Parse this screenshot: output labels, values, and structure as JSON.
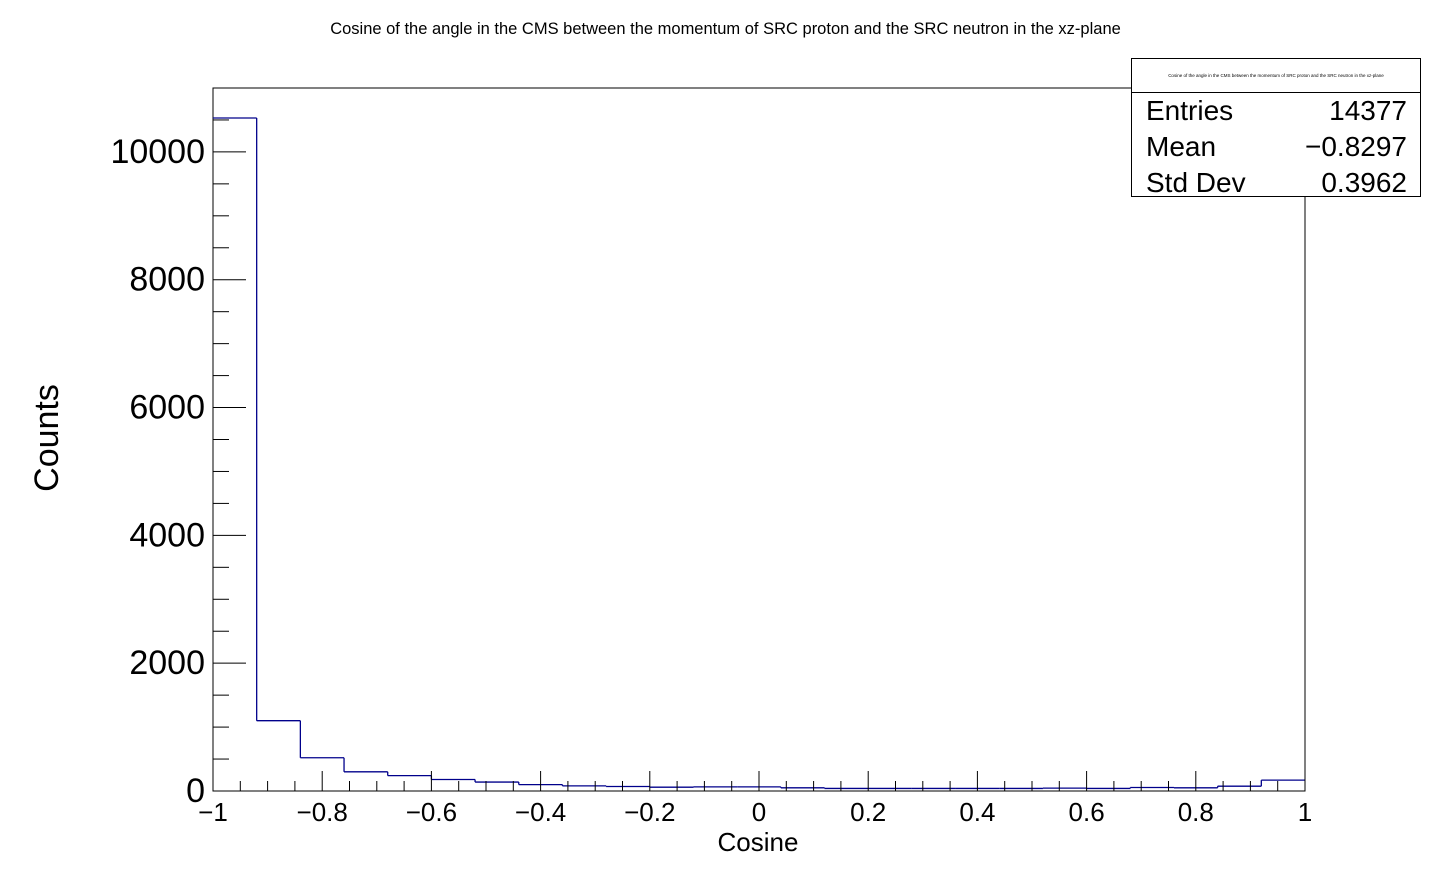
{
  "title": "Cosine of the angle in the CMS between the momentum of SRC proton and the SRC neutron in the xz-plane",
  "stats": {
    "header": "Cosine of the angle in the CMS between the momentum of SRC proton and the SRC neutron in the xz-plane",
    "rows": [
      {
        "label": "Entries",
        "value": "14377"
      },
      {
        "label": "Mean",
        "value": "−0.8297"
      },
      {
        "label": "Std Dev",
        "value": "0.3962"
      }
    ]
  },
  "colors": {
    "histogram_line": "#00008b",
    "axis": "#000000",
    "background": "#ffffff"
  },
  "chart_data": {
    "type": "bar",
    "style": "step-histogram",
    "title": "Cosine of the angle in the CMS between the momentum of SRC proton and the SRC neutron in the xz-plane",
    "xlabel": "Cosine",
    "ylabel": "Counts",
    "xlim": [
      -1,
      1
    ],
    "ylim": [
      0,
      11000
    ],
    "x_ticks": [
      {
        "value": -1,
        "label": "−1"
      },
      {
        "value": -0.8,
        "label": "−0.8"
      },
      {
        "value": -0.6,
        "label": "−0.6"
      },
      {
        "value": -0.4,
        "label": "−0.4"
      },
      {
        "value": -0.2,
        "label": "−0.2"
      },
      {
        "value": 0,
        "label": "0"
      },
      {
        "value": 0.2,
        "label": "0.2"
      },
      {
        "value": 0.4,
        "label": "0.4"
      },
      {
        "value": 0.6,
        "label": "0.6"
      },
      {
        "value": 0.8,
        "label": "0.8"
      },
      {
        "value": 1,
        "label": "1"
      }
    ],
    "y_ticks": [
      {
        "value": 0,
        "label": "0"
      },
      {
        "value": 2000,
        "label": "2000"
      },
      {
        "value": 4000,
        "label": "4000"
      },
      {
        "value": 6000,
        "label": "6000"
      },
      {
        "value": 8000,
        "label": "8000"
      },
      {
        "value": 10000,
        "label": "10000"
      }
    ],
    "bin_edges": [
      -1,
      -0.92,
      -0.84,
      -0.76,
      -0.68,
      -0.6,
      -0.52,
      -0.44,
      -0.36,
      -0.28,
      -0.2,
      -0.12,
      -0.04,
      0.04,
      0.12,
      0.2,
      0.28,
      0.36,
      0.44,
      0.52,
      0.6,
      0.68,
      0.76,
      0.84,
      0.92,
      1
    ],
    "values": [
      10530,
      1100,
      520,
      300,
      240,
      180,
      140,
      100,
      80,
      70,
      60,
      65,
      65,
      50,
      40,
      40,
      40,
      40,
      40,
      45,
      40,
      55,
      50,
      75,
      170
    ],
    "grid": false,
    "legend": "none"
  }
}
